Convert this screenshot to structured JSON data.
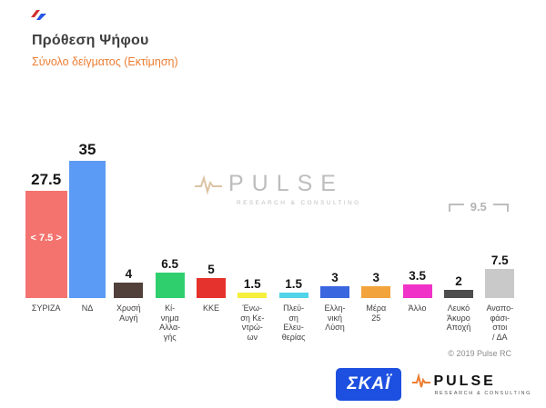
{
  "header": {
    "title": "Πρόθεση Ψήφου",
    "subtitle": "Σύνολο δείγματος   (Εκτίμηση)"
  },
  "watermark": {
    "name": "PULSE",
    "tagline": "RESEARCH & CONSULTING"
  },
  "footer": {
    "skai_logo_text": "ΣΚΑΪ",
    "pulse_logo_text": "PULSE",
    "pulse_logo_tagline": "RESEARCH & CONSULTING"
  },
  "chart_data": {
    "type": "bar",
    "title": "Πρόθεση Ψήφου",
    "subtitle": "Σύνολο δείγματος (Εκτίμηση)",
    "categories": [
      "ΣΥΡΙΖΑ",
      "ΝΔ",
      "Χρυσή Αυγή",
      "Κίνημα Αλλαγής",
      "ΚΚΕ",
      "Ένωση Κεντρώων",
      "Πλεύση Ελευθερίας",
      "Ελληνική Λύση",
      "Μέρα 25",
      "Άλλο",
      "Λευκό Άκυρο Αποχή",
      "Αναποφάσιστοι / ΔΑ"
    ],
    "values": [
      27.5,
      35,
      4,
      6.5,
      5,
      1.5,
      1.5,
      3,
      3,
      3.5,
      2,
      7.5
    ],
    "colors": [
      "#f4736e",
      "#5c9bf5",
      "#52403a",
      "#2fcf6e",
      "#e6322c",
      "#f5ef3d",
      "#4fd4e8",
      "#3a66e0",
      "#f2a33c",
      "#f032c8",
      "#4d4d4d",
      "#c9c9c9"
    ],
    "bar_labels_display": [
      "ΣΥΡΙΖΑ",
      "ΝΔ",
      "Χρυσή\nΑυγή",
      "Κί-\nνημα\nΑλλα-\nγής",
      "ΚΚΕ",
      "Ένω-\nση Κε-\nντρώ-\nων",
      "Πλεύ-\nση\nΕλευ-\nθερίας",
      "Ελλη-\nνική\nΛύση",
      "Μέρα\n25",
      "Άλλο",
      "Λευκό\nΆκυρο\nΑποχή",
      "Αναπο-\nφάσι-\nστοι\n/ ΔΑ"
    ],
    "ylim": [
      0,
      38
    ],
    "grid": false,
    "legend": false,
    "annotations": {
      "syriza_gap_label": "< 7.5 >",
      "combined_last_two_label": "9.5"
    },
    "copyright": "© 2019 Pulse RC"
  }
}
